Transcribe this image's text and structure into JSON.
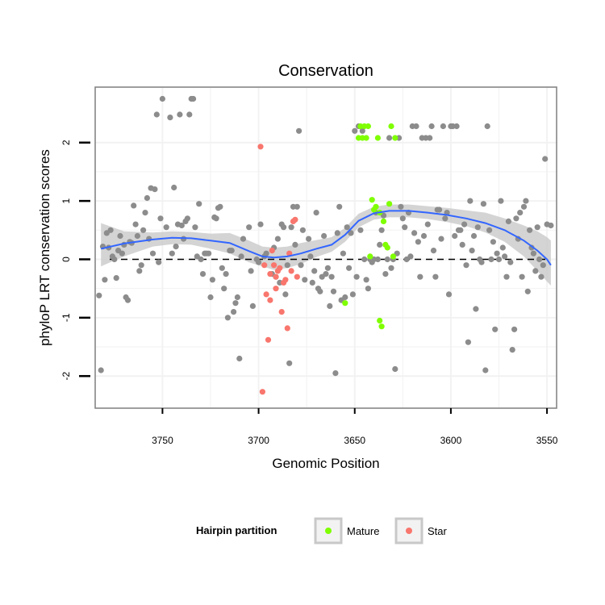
{
  "chart_data": {
    "type": "scatter",
    "title": "Conservation",
    "xlabel": "Genomic Position",
    "ylabel": "phyloP LRT conservation scores",
    "x_reversed": true,
    "xlim": [
      3545,
      3785
    ],
    "ylim": [
      -2.55,
      2.95
    ],
    "x_ticks": [
      3750,
      3700,
      3650,
      3600,
      3550
    ],
    "y_ticks": [
      -2,
      -1,
      0,
      1,
      2
    ],
    "hline": {
      "y": 0,
      "style": "dashed"
    },
    "legend": {
      "title": "Hairpin partition",
      "entries": [
        {
          "name": "Mature",
          "color": "#7fff00"
        },
        {
          "name": "Star",
          "color": "#f8766d"
        }
      ]
    },
    "colors": {
      "other": "#8c8c8c",
      "smooth_line": "#3366ff",
      "ci_band": "#cccccc",
      "grid": "#f2f2f2",
      "frame": "#7f7f7f"
    },
    "series": [
      {
        "name": "Other",
        "color": "#8c8c8c",
        "points": [
          [
            3783,
            -0.62
          ],
          [
            3782,
            -1.9
          ],
          [
            3781,
            0.22
          ],
          [
            3780,
            -0.35
          ],
          [
            3779,
            0.45
          ],
          [
            3778,
            0.2
          ],
          [
            3777,
            0.5
          ],
          [
            3776,
            0.05
          ],
          [
            3775,
            0.0
          ],
          [
            3774,
            -0.32
          ],
          [
            3773,
            0.15
          ],
          [
            3772,
            0.4
          ],
          [
            3771,
            0.1
          ],
          [
            3770,
            0.25
          ],
          [
            3769,
            -0.65
          ],
          [
            3768,
            -0.7
          ],
          [
            3767,
            0.3
          ],
          [
            3766,
            0.28
          ],
          [
            3765,
            0.92
          ],
          [
            3764,
            0.6
          ],
          [
            3763,
            0.4
          ],
          [
            3762,
            -0.2
          ],
          [
            3761,
            -0.1
          ],
          [
            3760,
            0.5
          ],
          [
            3759,
            0.8
          ],
          [
            3758,
            1.05
          ],
          [
            3757,
            0.35
          ],
          [
            3756,
            1.22
          ],
          [
            3755,
            0.1
          ],
          [
            3754,
            1.2
          ],
          [
            3753,
            2.48
          ],
          [
            3752,
            -0.05
          ],
          [
            3751,
            0.7
          ],
          [
            3750,
            2.75
          ],
          [
            3748,
            0.55
          ],
          [
            3746,
            2.43
          ],
          [
            3745,
            0.1
          ],
          [
            3744,
            1.23
          ],
          [
            3743,
            0.22
          ],
          [
            3742,
            0.6
          ],
          [
            3741,
            2.48
          ],
          [
            3740,
            0.58
          ],
          [
            3739,
            0.35
          ],
          [
            3738,
            0.65
          ],
          [
            3737,
            0.7
          ],
          [
            3736,
            2.48
          ],
          [
            3735,
            2.75
          ],
          [
            3734,
            2.75
          ],
          [
            3733,
            0.55
          ],
          [
            3732,
            0.05
          ],
          [
            3731,
            0.95
          ],
          [
            3730,
            0.0
          ],
          [
            3729,
            -0.25
          ],
          [
            3728,
            0.1
          ],
          [
            3727,
            0.1
          ],
          [
            3726,
            0.1
          ],
          [
            3725,
            -0.65
          ],
          [
            3724,
            -0.35
          ],
          [
            3723,
            0.72
          ],
          [
            3722,
            0.7
          ],
          [
            3721,
            0.88
          ],
          [
            3720,
            0.9
          ],
          [
            3719,
            -0.15
          ],
          [
            3718,
            -0.5
          ],
          [
            3717,
            -0.25
          ],
          [
            3716,
            -1.0
          ],
          [
            3715,
            0.15
          ],
          [
            3714,
            0.15
          ],
          [
            3713,
            -0.9
          ],
          [
            3712,
            -0.75
          ],
          [
            3711,
            -0.65
          ],
          [
            3710,
            -1.7
          ],
          [
            3709,
            0.05
          ],
          [
            3708,
            0.35
          ],
          [
            3705,
            0.55
          ],
          [
            3704,
            -0.2
          ],
          [
            3703,
            -0.8
          ],
          [
            3701,
            0.0
          ],
          [
            3700,
            -0.05
          ],
          [
            3699,
            0.6
          ],
          [
            3697,
            0.05
          ],
          [
            3696,
            0.1
          ],
          [
            3693,
            -0.25
          ],
          [
            3692,
            0.2
          ],
          [
            3691,
            -0.3
          ],
          [
            3690,
            0.35
          ],
          [
            3689,
            -0.4
          ],
          [
            3688,
            0.6
          ],
          [
            3687,
            0.55
          ],
          [
            3686,
            -0.6
          ],
          [
            3685,
            -0.1
          ],
          [
            3684,
            -1.78
          ],
          [
            3683,
            0.55
          ],
          [
            3682,
            0.9
          ],
          [
            3681,
            0.25
          ],
          [
            3680,
            0.9
          ],
          [
            3679,
            2.2
          ],
          [
            3678,
            -0.1
          ],
          [
            3677,
            0.5
          ],
          [
            3676,
            -0.35
          ],
          [
            3674,
            0.35
          ],
          [
            3673,
            0.05
          ],
          [
            3672,
            -0.4
          ],
          [
            3671,
            -0.2
          ],
          [
            3670,
            0.8
          ],
          [
            3669,
            -0.5
          ],
          [
            3668,
            -0.55
          ],
          [
            3667,
            -0.3
          ],
          [
            3666,
            0.4
          ],
          [
            3665,
            -0.25
          ],
          [
            3664,
            -0.15
          ],
          [
            3663,
            -0.8
          ],
          [
            3662,
            -0.3
          ],
          [
            3661,
            -0.55
          ],
          [
            3660,
            -1.95
          ],
          [
            3659,
            0.45
          ],
          [
            3658,
            0.9
          ],
          [
            3657,
            -0.7
          ],
          [
            3656,
            0.1
          ],
          [
            3655,
            -0.65
          ],
          [
            3654,
            0.55
          ],
          [
            3653,
            -0.15
          ],
          [
            3652,
            0.45
          ],
          [
            3651,
            -0.6
          ],
          [
            3650,
            2.2
          ],
          [
            3649,
            -0.3
          ],
          [
            3648,
            2.28
          ],
          [
            3647,
            0.5
          ],
          [
            3646,
            2.2
          ],
          [
            3645,
            0.0
          ],
          [
            3644,
            -0.35
          ],
          [
            3643,
            -0.5
          ],
          [
            3642,
            0.0
          ],
          [
            3641,
            -0.05
          ],
          [
            3640,
            0.0
          ],
          [
            3639,
            0.8
          ],
          [
            3638,
            0.0
          ],
          [
            3637,
            0.25
          ],
          [
            3636,
            0.5
          ],
          [
            3635,
            0.75
          ],
          [
            3634,
            -0.25
          ],
          [
            3633,
            0.0
          ],
          [
            3632,
            2.08
          ],
          [
            3631,
            -0.15
          ],
          [
            3630,
            0.0
          ],
          [
            3629,
            -1.88
          ],
          [
            3628,
            0.1
          ],
          [
            3627,
            2.08
          ],
          [
            3626,
            0.9
          ],
          [
            3625,
            0.7
          ],
          [
            3624,
            0.55
          ],
          [
            3623,
            0.0
          ],
          [
            3622,
            0.8
          ],
          [
            3621,
            0.05
          ],
          [
            3620,
            2.28
          ],
          [
            3619,
            0.45
          ],
          [
            3618,
            2.28
          ],
          [
            3617,
            0.3
          ],
          [
            3616,
            -0.3
          ],
          [
            3615,
            2.08
          ],
          [
            3614,
            0.4
          ],
          [
            3613,
            2.08
          ],
          [
            3612,
            0.6
          ],
          [
            3611,
            2.08
          ],
          [
            3610,
            2.28
          ],
          [
            3609,
            0.15
          ],
          [
            3608,
            -0.3
          ],
          [
            3607,
            0.85
          ],
          [
            3606,
            0.85
          ],
          [
            3605,
            0.35
          ],
          [
            3604,
            2.28
          ],
          [
            3603,
            0.7
          ],
          [
            3602,
            0.8
          ],
          [
            3601,
            -0.6
          ],
          [
            3600,
            2.28
          ],
          [
            3599,
            2.28
          ],
          [
            3598,
            0.4
          ],
          [
            3597,
            2.28
          ],
          [
            3596,
            0.5
          ],
          [
            3595,
            0.5
          ],
          [
            3594,
            0.25
          ],
          [
            3593,
            0.6
          ],
          [
            3592,
            -0.1
          ],
          [
            3591,
            -1.42
          ],
          [
            3590,
            1.0
          ],
          [
            3589,
            0.15
          ],
          [
            3588,
            0.4
          ],
          [
            3587,
            -0.85
          ],
          [
            3586,
            0.55
          ],
          [
            3585,
            0.0
          ],
          [
            3584,
            -0.05
          ],
          [
            3583,
            0.95
          ],
          [
            3582,
            -1.9
          ],
          [
            3581,
            2.28
          ],
          [
            3580,
            0.5
          ],
          [
            3579,
            0.0
          ],
          [
            3578,
            0.3
          ],
          [
            3577,
            -1.2
          ],
          [
            3576,
            0.1
          ],
          [
            3575,
            0.0
          ],
          [
            3574,
            1.0
          ],
          [
            3573,
            0.2
          ],
          [
            3572,
            0.05
          ],
          [
            3571,
            -0.3
          ],
          [
            3570,
            0.65
          ],
          [
            3569,
            -0.05
          ],
          [
            3568,
            -1.55
          ],
          [
            3567,
            -1.2
          ],
          [
            3566,
            0.7
          ],
          [
            3565,
            0.35
          ],
          [
            3564,
            0.8
          ],
          [
            3563,
            -0.3
          ],
          [
            3562,
            0.9
          ],
          [
            3561,
            1.0
          ],
          [
            3560,
            -0.55
          ],
          [
            3559,
            0.5
          ],
          [
            3558,
            0.2
          ],
          [
            3557,
            0.1
          ],
          [
            3556,
            -0.2
          ],
          [
            3555,
            0.55
          ],
          [
            3554,
            0.0
          ],
          [
            3553,
            -0.3
          ],
          [
            3552,
            -0.1
          ],
          [
            3551,
            1.72
          ],
          [
            3550,
            0.6
          ],
          [
            3548,
            0.58
          ]
        ]
      },
      {
        "name": "Mature",
        "color": "#7fff00",
        "points": [
          [
            3648,
            2.08
          ],
          [
            3647,
            2.28
          ],
          [
            3646,
            2.08
          ],
          [
            3645,
            2.28
          ],
          [
            3644,
            2.08
          ],
          [
            3643,
            2.28
          ],
          [
            3642,
            0.05
          ],
          [
            3641,
            1.02
          ],
          [
            3640,
            0.85
          ],
          [
            3639,
            0.9
          ],
          [
            3638,
            2.08
          ],
          [
            3637,
            -1.05
          ],
          [
            3636,
            -1.15
          ],
          [
            3635,
            0.65
          ],
          [
            3634,
            0.25
          ],
          [
            3633,
            0.2
          ],
          [
            3632,
            0.95
          ],
          [
            3631,
            2.28
          ],
          [
            3630,
            0.05
          ],
          [
            3629,
            2.08
          ],
          [
            3655,
            -0.75
          ],
          [
            3637,
            0.8
          ]
        ]
      },
      {
        "name": "Star",
        "color": "#f8766d",
        "points": [
          [
            3699,
            1.93
          ],
          [
            3698,
            -2.27
          ],
          [
            3697,
            -0.1
          ],
          [
            3696,
            -0.6
          ],
          [
            3695,
            -1.38
          ],
          [
            3694,
            -0.25
          ],
          [
            3693,
            0.15
          ],
          [
            3692,
            -0.1
          ],
          [
            3691,
            -0.5
          ],
          [
            3690,
            -0.2
          ],
          [
            3689,
            -0.15
          ],
          [
            3688,
            -0.9
          ],
          [
            3687,
            -0.4
          ],
          [
            3686,
            -0.35
          ],
          [
            3685,
            -1.18
          ],
          [
            3684,
            0.1
          ],
          [
            3683,
            -0.2
          ],
          [
            3682,
            0.65
          ],
          [
            3681,
            0.68
          ],
          [
            3680,
            -0.3
          ],
          [
            3694,
            -0.7
          ],
          [
            3691,
            -0.3
          ]
        ]
      }
    ],
    "smooth_line": {
      "x": [
        3782,
        3770,
        3755,
        3745,
        3735,
        3725,
        3715,
        3705,
        3698,
        3692,
        3685,
        3678,
        3670,
        3662,
        3655,
        3648,
        3640,
        3632,
        3622,
        3612,
        3602,
        3592,
        3582,
        3572,
        3562,
        3555,
        3550,
        3548
      ],
      "y": [
        0.18,
        0.27,
        0.34,
        0.37,
        0.36,
        0.32,
        0.28,
        0.14,
        0.05,
        0.03,
        0.05,
        0.1,
        0.18,
        0.25,
        0.42,
        0.66,
        0.79,
        0.83,
        0.83,
        0.8,
        0.76,
        0.7,
        0.62,
        0.5,
        0.32,
        0.15,
        0.0,
        -0.1
      ],
      "ci_lower": [
        -0.12,
        0.05,
        0.22,
        0.26,
        0.25,
        0.18,
        0.1,
        -0.05,
        -0.12,
        -0.18,
        -0.15,
        -0.08,
        0.04,
        0.13,
        0.3,
        0.55,
        0.68,
        0.72,
        0.72,
        0.69,
        0.64,
        0.57,
        0.46,
        0.3,
        0.05,
        -0.2,
        -0.38,
        -0.45
      ],
      "ci_upper": [
        0.62,
        0.48,
        0.46,
        0.48,
        0.47,
        0.44,
        0.45,
        0.32,
        0.22,
        0.2,
        0.22,
        0.28,
        0.33,
        0.38,
        0.54,
        0.78,
        0.9,
        0.94,
        0.94,
        0.91,
        0.88,
        0.84,
        0.8,
        0.7,
        0.58,
        0.48,
        0.38,
        0.32
      ]
    }
  }
}
